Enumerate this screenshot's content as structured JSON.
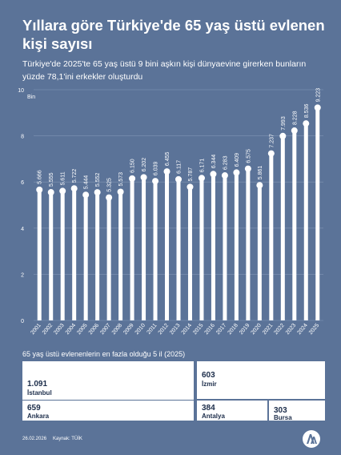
{
  "title": "Yıllara göre Türkiye'de 65 yaş üstü evlenen kişi sayısı",
  "subtitle": "Türkiye'de 2025'te 65 yaş üstü 9 bini aşkın kişi dünyaevine girerken bunların yüzde 78,1'ini erkekler oluşturdu",
  "chart_data": {
    "type": "bar",
    "unit": "Bin",
    "categories": [
      "2001",
      "2002",
      "2003",
      "2004",
      "2005",
      "2006",
      "2007",
      "2008",
      "2009",
      "2010",
      "2011",
      "2012",
      "2013",
      "2014",
      "2015",
      "2016",
      "2017",
      "2018",
      "2019",
      "2020",
      "2021",
      "2022",
      "2023",
      "2024",
      "2025"
    ],
    "values": [
      5.666,
      5.555,
      5.611,
      5.722,
      5.444,
      5.552,
      5.325,
      5.573,
      6.15,
      6.202,
      6.039,
      6.455,
      6.117,
      5.787,
      6.171,
      6.344,
      6.283,
      6.409,
      6.575,
      5.861,
      7.237,
      7.993,
      8.228,
      8.536,
      9.223
    ],
    "value_labels": [
      "5.666",
      "5.555",
      "5.611",
      "5.722",
      "5.444",
      "5.552",
      "5.325",
      "5.573",
      "6.150",
      "6.202",
      "6.039",
      "6.455",
      "6.117",
      "5.787",
      "6.171",
      "6.344",
      "6.283",
      "6.409",
      "6.575",
      "5.861",
      "7.237",
      "7.993",
      "8.228",
      "8.536",
      "9.223"
    ],
    "ylim": [
      0,
      10
    ],
    "yticks": [
      "0",
      "2",
      "4",
      "6",
      "8",
      "10"
    ],
    "grid": true
  },
  "top_provinces": {
    "title": "65 yaş üstü evlenenlerin en fazla olduğu 5 il (2025)",
    "items": [
      {
        "value": "1.091",
        "city": "İstanbul"
      },
      {
        "value": "659",
        "city": "Ankara"
      },
      {
        "value": "603",
        "city": "İzmir"
      },
      {
        "value": "384",
        "city": "Antalya"
      },
      {
        "value": "303",
        "city": "Bursa"
      }
    ]
  },
  "footer": {
    "date": "26.02.2026",
    "source": "Kaynak: TÜİK"
  },
  "colors": {
    "background": "#5b7398",
    "bar": "#ffffff",
    "grid": "#8196b5"
  },
  "logo": {
    "icon": "aa-logo-icon"
  }
}
